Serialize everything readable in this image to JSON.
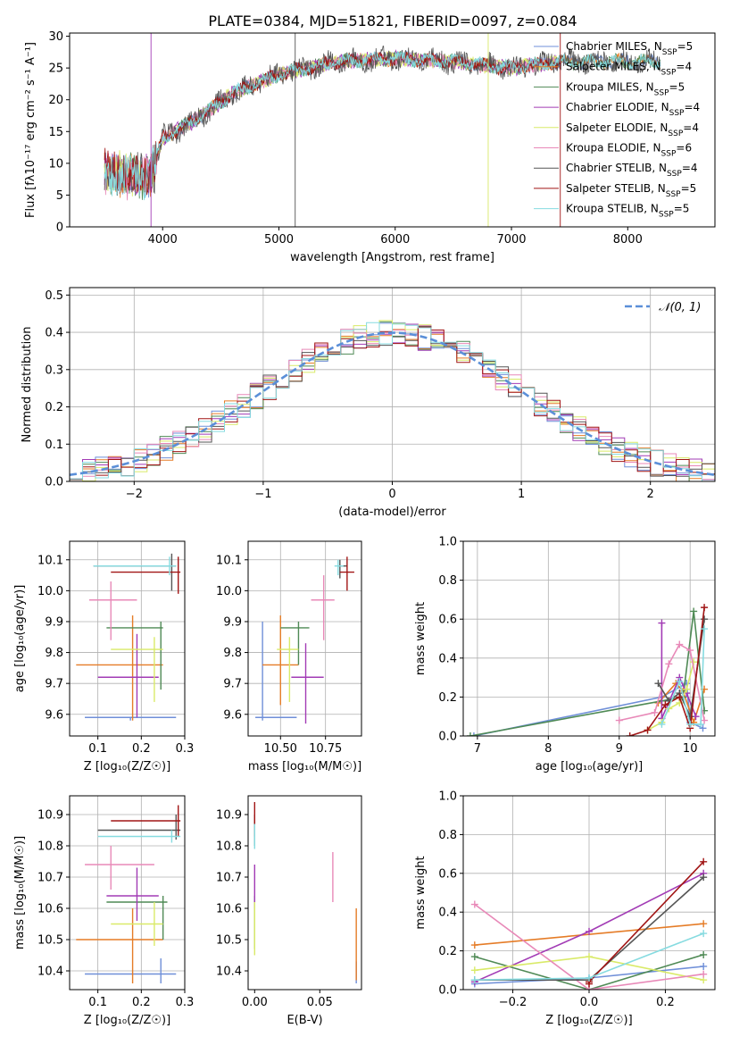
{
  "figure_title": "PLATE=0384, MJD=51821, FIBERID=0097, z=0.084",
  "colors": [
    "#6f8fd8",
    "#e57c27",
    "#4f8a55",
    "#a23bb5",
    "#d9ea68",
    "#e889b8",
    "#555555",
    "#a11515",
    "#86dbe0"
  ],
  "chart_data": [
    {
      "id": "spectrum",
      "type": "line",
      "title": "PLATE=0384, MJD=51821, FIBERID=0097, z=0.084",
      "xlabel": "wavelength [Angstrom, rest frame]",
      "ylabel": "Flux [fλ10⁻¹⁷ erg cm⁻² s⁻¹ A⁻¹]",
      "xlim": [
        3200,
        8750
      ],
      "ylim": [
        0,
        30.5
      ],
      "xticks": [
        4000,
        5000,
        6000,
        7000,
        8000
      ],
      "yticks": [
        0,
        5,
        10,
        15,
        20,
        25,
        30
      ],
      "grid": false,
      "legend_position": "right",
      "continuum": {
        "x": [
          3500,
          3700,
          3900,
          4000,
          4300,
          4600,
          5000,
          5500,
          6000,
          6500,
          7000,
          7400
        ],
        "y": [
          9,
          8,
          8,
          14,
          17,
          21,
          24,
          26,
          26.5,
          26,
          25,
          26
        ]
      },
      "series": [
        {
          "name": "Chabrier MILES, N_SSP=5",
          "x_range": [
            3500,
            8280
          ]
        },
        {
          "name": "Salpeter MILES, N_SSP=4",
          "x_range": [
            3500,
            8280
          ]
        },
        {
          "name": "Kroupa MILES, N_SSP=5",
          "x_range": [
            3500,
            8280
          ]
        },
        {
          "name": "Chabrier ELODIE, N_SSP=4",
          "x_range": [
            3500,
            7400
          ]
        },
        {
          "name": "Salpeter ELODIE, N_SSP=4",
          "x_range": [
            3500,
            7400
          ]
        },
        {
          "name": "Kroupa ELODIE, N_SSP=6",
          "x_range": [
            3500,
            7400
          ]
        },
        {
          "name": "Chabrier STELIB, N_SSP=4",
          "x_range": [
            3500,
            8280
          ]
        },
        {
          "name": "Salpeter STELIB, N_SSP=5",
          "x_range": [
            3500,
            7420
          ]
        },
        {
          "name": "Kroupa STELIB, N_SSP=5",
          "x_range": [
            3500,
            8280
          ]
        }
      ]
    },
    {
      "id": "residual-hist",
      "type": "line",
      "xlabel": "(data-model)/error",
      "ylabel": "Normed distribution",
      "xlim": [
        -2.5,
        2.5
      ],
      "ylim": [
        0,
        0.52
      ],
      "xticks": [
        -2,
        -1,
        0,
        1,
        2
      ],
      "yticks": [
        0.0,
        0.1,
        0.2,
        0.3,
        0.4,
        0.5
      ],
      "grid": true,
      "legend": [
        "𝒩(0, 1)"
      ],
      "legend_position": "top-right",
      "bin_width": 0.1
    },
    {
      "id": "age-vs-z",
      "type": "scatter",
      "xlabel": "Z [log₁₀(Z/Z☉)]",
      "ylabel": "age  [log₁₀(age/yr)]",
      "xlim": [
        0.035,
        0.3
      ],
      "ylim": [
        9.53,
        10.16
      ],
      "xticks": [
        0.1,
        0.2,
        0.3
      ],
      "yticks": [
        9.6,
        9.7,
        9.8,
        9.9,
        10.0,
        10.1
      ],
      "grid": true,
      "points": [
        {
          "x": 0.175,
          "y": 9.59,
          "xerr": [
            0.07,
            0.28
          ],
          "yerr": [
            9.58,
            9.59
          ]
        },
        {
          "x": 0.18,
          "y": 9.76,
          "xerr": [
            0.05,
            0.25
          ],
          "yerr": [
            9.58,
            9.92
          ]
        },
        {
          "x": 0.245,
          "y": 9.88,
          "xerr": [
            0.12,
            0.25
          ],
          "yerr": [
            9.68,
            9.9
          ]
        },
        {
          "x": 0.19,
          "y": 9.72,
          "xerr": [
            0.1,
            0.24
          ],
          "yerr": [
            9.59,
            9.86
          ]
        },
        {
          "x": 0.23,
          "y": 9.81,
          "xerr": [
            0.13,
            0.25
          ],
          "yerr": [
            9.64,
            9.85
          ]
        },
        {
          "x": 0.13,
          "y": 9.97,
          "xerr": [
            0.08,
            0.19
          ],
          "yerr": [
            9.84,
            10.03
          ]
        },
        {
          "x": 0.27,
          "y": 10.08,
          "xerr": [
            0.09,
            0.28
          ],
          "yerr": [
            10.0,
            10.12
          ]
        },
        {
          "x": 0.285,
          "y": 10.06,
          "xerr": [
            0.13,
            0.29
          ],
          "yerr": [
            9.99,
            10.11
          ]
        },
        {
          "x": 0.265,
          "y": 10.08,
          "xerr": [
            0.09,
            0.28
          ],
          "yerr": [
            10.05,
            10.11
          ]
        }
      ]
    },
    {
      "id": "age-vs-mass",
      "type": "scatter",
      "xlabel": "mass [log₁₀(M/M☉)]",
      "ylabel": "",
      "xlim": [
        10.32,
        10.95
      ],
      "ylim": [
        9.53,
        10.16
      ],
      "xticks": [
        10.5,
        10.75
      ],
      "yticks": [
        9.6,
        9.7,
        9.8,
        9.9,
        10.0,
        10.1
      ],
      "grid": true,
      "points": [
        {
          "x": 10.4,
          "y": 9.59,
          "xerr": [
            10.36,
            10.59
          ],
          "yerr": [
            9.58,
            9.9
          ]
        },
        {
          "x": 10.5,
          "y": 9.76,
          "xerr": [
            10.4,
            10.6
          ],
          "yerr": [
            9.63,
            9.92
          ]
        },
        {
          "x": 10.6,
          "y": 9.88,
          "xerr": [
            10.5,
            10.66
          ],
          "yerr": [
            9.76,
            9.9
          ]
        },
        {
          "x": 10.64,
          "y": 9.72,
          "xerr": [
            10.56,
            10.74
          ],
          "yerr": [
            9.57,
            9.83
          ]
        },
        {
          "x": 10.55,
          "y": 9.81,
          "xerr": [
            10.48,
            10.6
          ],
          "yerr": [
            9.64,
            9.85
          ]
        },
        {
          "x": 10.74,
          "y": 9.97,
          "xerr": [
            10.67,
            10.8
          ],
          "yerr": [
            9.84,
            10.05
          ]
        },
        {
          "x": 10.83,
          "y": 10.08,
          "xerr": [
            10.82,
            10.87
          ],
          "yerr": [
            10.04,
            10.1
          ]
        },
        {
          "x": 10.87,
          "y": 10.06,
          "xerr": [
            10.83,
            10.91
          ],
          "yerr": [
            10.0,
            10.11
          ]
        },
        {
          "x": 10.82,
          "y": 10.08,
          "xerr": [
            10.8,
            10.85
          ],
          "yerr": [
            10.05,
            10.1
          ]
        }
      ]
    },
    {
      "id": "weight-vs-age",
      "type": "line",
      "xlabel": "age  [log₁₀(age/yr)]",
      "ylabel": "mass weight",
      "xlim": [
        6.8,
        10.35
      ],
      "ylim": [
        0,
        1.0
      ],
      "xticks": [
        7,
        8,
        9,
        10
      ],
      "yticks": [
        0.0,
        0.2,
        0.4,
        0.6,
        0.8,
        1.0
      ],
      "grid": true,
      "series": [
        {
          "x": [
            6.95,
            9.6,
            9.95,
            10.0,
            10.18
          ],
          "y": [
            0.0,
            0.2,
            0.27,
            0.07,
            0.04
          ]
        },
        {
          "x": [
            9.55,
            9.8,
            9.9,
            10.05,
            10.2
          ],
          "y": [
            0.17,
            0.27,
            0.23,
            0.07,
            0.24
          ]
        },
        {
          "x": [
            6.9,
            9.6,
            9.9,
            10.05,
            10.2
          ],
          "y": [
            0.0,
            0.18,
            0.2,
            0.64,
            0.13
          ]
        },
        {
          "x": [
            9.6,
            9.6,
            9.85,
            9.95,
            10.08
          ],
          "y": [
            0.58,
            0.09,
            0.3,
            0.22,
            0.1
          ]
        },
        {
          "x": [
            9.4,
            9.6,
            9.7,
            9.85,
            9.95,
            10.05
          ],
          "y": [
            0.03,
            0.07,
            0.14,
            0.17,
            0.24,
            0.38
          ]
        },
        {
          "x": [
            9.0,
            9.5,
            9.7,
            9.85,
            10.0,
            10.2
          ],
          "y": [
            0.08,
            0.12,
            0.37,
            0.47,
            0.44,
            0.08
          ]
        },
        {
          "x": [
            9.55,
            9.7,
            9.85,
            10.0,
            10.2
          ],
          "y": [
            0.27,
            0.18,
            0.22,
            0.1,
            0.6
          ]
        },
        {
          "x": [
            9.15,
            9.4,
            9.65,
            9.85,
            10.0,
            10.2
          ],
          "y": [
            0.0,
            0.03,
            0.16,
            0.2,
            0.04,
            0.66
          ]
        },
        {
          "x": [
            9.6,
            9.85,
            10.0,
            10.15,
            10.2
          ],
          "y": [
            0.06,
            0.28,
            0.06,
            0.06,
            0.55
          ]
        }
      ]
    },
    {
      "id": "mass-vs-z",
      "type": "scatter",
      "xlabel": "Z [log₁₀(Z/Z☉)]",
      "ylabel": "mass [log₁₀(M/M☉)]",
      "xlim": [
        0.035,
        0.3
      ],
      "ylim": [
        10.34,
        10.96
      ],
      "xticks": [
        0.1,
        0.2,
        0.3
      ],
      "yticks": [
        10.4,
        10.5,
        10.6,
        10.7,
        10.8,
        10.9
      ],
      "grid": true,
      "points": [
        {
          "x": 0.245,
          "y": 10.39,
          "xerr": [
            0.07,
            0.28
          ],
          "yerr": [
            10.36,
            10.44
          ]
        },
        {
          "x": 0.18,
          "y": 10.5,
          "xerr": [
            0.05,
            0.25
          ],
          "yerr": [
            10.36,
            10.6
          ]
        },
        {
          "x": 0.25,
          "y": 10.62,
          "xerr": [
            0.12,
            0.26
          ],
          "yerr": [
            10.5,
            10.64
          ]
        },
        {
          "x": 0.19,
          "y": 10.64,
          "xerr": [
            0.12,
            0.24
          ],
          "yerr": [
            10.56,
            10.73
          ]
        },
        {
          "x": 0.23,
          "y": 10.55,
          "xerr": [
            0.13,
            0.25
          ],
          "yerr": [
            10.48,
            10.62
          ]
        },
        {
          "x": 0.13,
          "y": 10.74,
          "xerr": [
            0.07,
            0.23
          ],
          "yerr": [
            10.66,
            10.8
          ]
        },
        {
          "x": 0.28,
          "y": 10.85,
          "xerr": [
            0.1,
            0.29
          ],
          "yerr": [
            10.82,
            10.9
          ]
        },
        {
          "x": 0.285,
          "y": 10.88,
          "xerr": [
            0.13,
            0.29
          ],
          "yerr": [
            10.83,
            10.93
          ]
        },
        {
          "x": 0.27,
          "y": 10.83,
          "xerr": [
            0.1,
            0.29
          ],
          "yerr": [
            10.81,
            10.85
          ]
        }
      ]
    },
    {
      "id": "mass-vs-ebv",
      "type": "scatter",
      "xlabel": "E(B-V)",
      "ylabel": "",
      "xlim": [
        -0.005,
        0.082
      ],
      "ylim": [
        10.34,
        10.96
      ],
      "xticks": [
        0.0,
        0.05
      ],
      "yticks": [
        10.4,
        10.5,
        10.6,
        10.7,
        10.8,
        10.9
      ],
      "grid": false,
      "points": [
        {
          "x": 0.078,
          "y": 10.39,
          "xerr": [
            0.078,
            0.078
          ],
          "yerr": [
            10.36,
            10.43
          ]
        },
        {
          "x": 0.078,
          "y": 10.5,
          "xerr": [
            0.078,
            0.078
          ],
          "yerr": [
            10.37,
            10.6
          ]
        },
        {
          "x": 0.0,
          "y": 10.62,
          "xerr": [
            0.0,
            0.0
          ],
          "yerr": [
            10.47,
            10.64
          ]
        },
        {
          "x": 0.0,
          "y": 10.66,
          "xerr": [
            0.0,
            0.0
          ],
          "yerr": [
            10.6,
            10.74
          ]
        },
        {
          "x": 0.0,
          "y": 10.55,
          "xerr": [
            0.0,
            0.0
          ],
          "yerr": [
            10.45,
            10.62
          ]
        },
        {
          "x": 0.06,
          "y": 10.72,
          "xerr": [
            0.06,
            0.06
          ],
          "yerr": [
            10.62,
            10.78
          ]
        },
        {
          "x": 0.0,
          "y": 10.85,
          "xerr": [
            0.0,
            0.0
          ],
          "yerr": [
            10.8,
            10.9
          ]
        },
        {
          "x": 0.0,
          "y": 10.88,
          "xerr": [
            0.0,
            0.0
          ],
          "yerr": [
            10.83,
            10.94
          ]
        },
        {
          "x": 0.0,
          "y": 10.84,
          "xerr": [
            0.0,
            0.0
          ],
          "yerr": [
            10.79,
            10.87
          ]
        }
      ]
    },
    {
      "id": "weight-vs-z",
      "type": "line",
      "xlabel": "Z [log₁₀(Z/Z☉)]",
      "ylabel": "mass weight",
      "xlim": [
        -0.33,
        0.33
      ],
      "ylim": [
        0,
        1.0
      ],
      "xticks": [
        -0.2,
        0.0,
        0.2
      ],
      "yticks": [
        0.0,
        0.2,
        0.4,
        0.6,
        0.8,
        1.0
      ],
      "grid": true,
      "series": [
        {
          "x": [
            -0.3,
            0.0,
            0.3
          ],
          "y": [
            0.03,
            0.06,
            0.12
          ]
        },
        {
          "x": [
            -0.3,
            0.3
          ],
          "y": [
            0.23,
            0.34
          ]
        },
        {
          "x": [
            -0.3,
            0.0,
            0.3
          ],
          "y": [
            0.17,
            0.0,
            0.18
          ]
        },
        {
          "x": [
            -0.3,
            0.0,
            0.3
          ],
          "y": [
            0.04,
            0.3,
            0.6
          ]
        },
        {
          "x": [
            -0.3,
            0.0,
            0.3
          ],
          "y": [
            0.1,
            0.17,
            0.05
          ]
        },
        {
          "x": [
            -0.3,
            0.0,
            0.3
          ],
          "y": [
            0.44,
            0.0,
            0.08
          ]
        },
        {
          "x": [
            -0.3,
            0.0,
            0.3
          ],
          "y": [
            0.05,
            0.05,
            0.58
          ]
        },
        {
          "x": [
            0.0,
            0.0,
            0.3
          ],
          "y": [
            0.03,
            0.04,
            0.66
          ]
        },
        {
          "x": [
            -0.3,
            0.0,
            0.3
          ],
          "y": [
            0.05,
            0.06,
            0.29
          ]
        }
      ]
    }
  ]
}
